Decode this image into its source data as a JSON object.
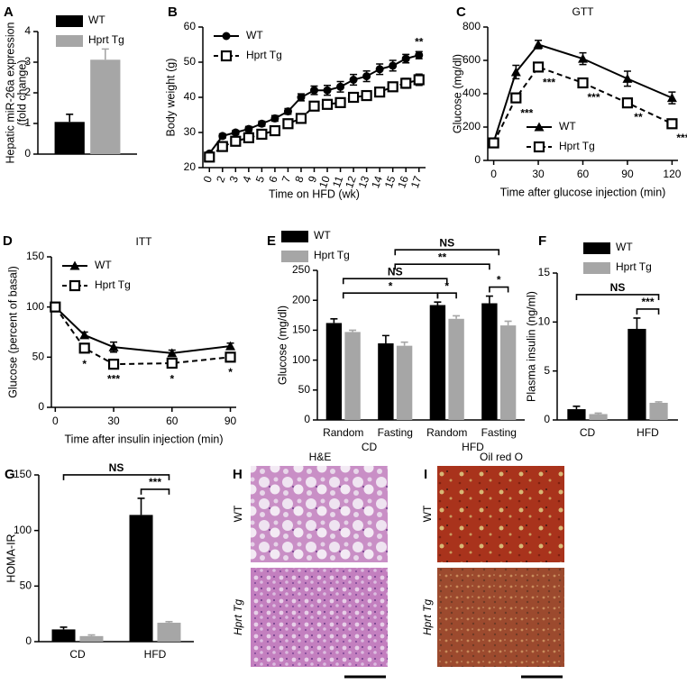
{
  "chart_data": [
    {
      "panel": "A",
      "type": "bar",
      "ylabel": [
        "Hepatic miR-26a expression",
        "(fold change)"
      ],
      "categories": [
        null
      ],
      "series": [
        {
          "name": "WT",
          "color": "#000000",
          "values": [
            1.05
          ],
          "errors": [
            0.25
          ]
        },
        {
          "name": "Hprt Tg",
          "color": "#a6a6a6",
          "values": [
            3.08
          ],
          "errors": [
            0.35
          ]
        }
      ],
      "ylim": [
        0,
        4
      ],
      "yticks": [
        0,
        1,
        2,
        3,
        4
      ],
      "legend": "upper left"
    },
    {
      "panel": "B",
      "type": "line",
      "ylabel": "Body weight (g)",
      "xlabel": "Time on HFD (wk)",
      "categories": [
        "0",
        "2",
        "3",
        "4",
        "5",
        "6",
        "7",
        "8",
        "9",
        "10",
        "11",
        "12",
        "13",
        "14",
        "15",
        "16",
        "17"
      ],
      "series": [
        {
          "name": "WT",
          "color": "#000000",
          "marker": "circle",
          "linestyle": "solid",
          "values": [
            24,
            29,
            30,
            31,
            32.5,
            34,
            36,
            40,
            42,
            42,
            43,
            45,
            46,
            48,
            49,
            51,
            52
          ],
          "errors": [
            0.5,
            0.6,
            0.6,
            0.7,
            0.7,
            0.8,
            0.8,
            1,
            1.2,
            1.4,
            1.5,
            1.5,
            1.5,
            1.5,
            1.5,
            1.2,
            1
          ]
        },
        {
          "name": "Hprt Tg",
          "color": "#000000",
          "marker": "square",
          "linestyle": "dashed",
          "values": [
            23,
            26,
            27.5,
            28.5,
            29.5,
            30.5,
            32.5,
            34,
            37.5,
            38,
            38.5,
            40,
            40.5,
            41.5,
            43,
            44,
            45
          ],
          "errors": [
            0.5,
            0.5,
            0.6,
            0.6,
            0.6,
            0.7,
            0.7,
            0.8,
            0.9,
            1,
            1,
            1,
            1,
            1.1,
            1.2,
            1.4,
            1.6
          ],
          "significance": [
            null,
            null,
            null,
            null,
            null,
            null,
            null,
            null,
            null,
            null,
            null,
            null,
            null,
            null,
            null,
            null,
            "**"
          ]
        }
      ],
      "ylim": [
        20,
        60
      ],
      "yticks": [
        20,
        30,
        40,
        50,
        60
      ],
      "legend": "upper left"
    },
    {
      "panel": "C",
      "type": "line",
      "title": "GTT",
      "ylabel": "Glucose (mg/dl)",
      "xlabel": "Time after glucose injection (min)",
      "x": [
        0,
        15,
        30,
        60,
        90,
        120
      ],
      "series": [
        {
          "name": "WT",
          "color": "#000000",
          "marker": "triangle",
          "linestyle": "solid",
          "values": [
            110,
            530,
            695,
            610,
            490,
            375
          ],
          "errors": [
            15,
            40,
            25,
            35,
            45,
            35
          ]
        },
        {
          "name": "Hprt Tg",
          "color": "#000000",
          "marker": "square",
          "linestyle": "dashed",
          "values": [
            105,
            375,
            560,
            465,
            345,
            220
          ],
          "errors": [
            10,
            20,
            20,
            15,
            15,
            15
          ],
          "significance": [
            null,
            "***",
            "***",
            "***",
            "**",
            "***"
          ]
        }
      ],
      "xlim": [
        -4,
        124
      ],
      "xticks": [
        0,
        30,
        60,
        90,
        120
      ],
      "ylim": [
        0,
        800
      ],
      "yticks": [
        0,
        200,
        400,
        600,
        800
      ],
      "legend": "lower right"
    },
    {
      "panel": "D",
      "type": "line",
      "title": "ITT",
      "ylabel": "Glucose (percent of basal)",
      "xlabel": "Time after insulin injection (min)",
      "x": [
        0,
        15,
        30,
        60,
        90
      ],
      "series": [
        {
          "name": "WT",
          "color": "#000000",
          "marker": "triangle",
          "linestyle": "solid",
          "values": [
            100,
            72,
            60,
            54,
            61
          ],
          "errors": [
            0,
            3,
            5,
            3,
            3
          ]
        },
        {
          "name": "Hprt Tg",
          "color": "#000000",
          "marker": "square",
          "linestyle": "dashed",
          "values": [
            100,
            59,
            43,
            44,
            50
          ],
          "errors": [
            0,
            4,
            3,
            4,
            3
          ],
          "significance": [
            null,
            "*",
            "***",
            "*",
            "*"
          ]
        }
      ],
      "xlim": [
        -2,
        93
      ],
      "xticks": [
        0,
        30,
        60,
        90
      ],
      "ylim": [
        0,
        150
      ],
      "yticks": [
        0,
        50,
        100,
        150
      ],
      "legend": "upper left"
    },
    {
      "panel": "E",
      "type": "bar",
      "ylabel": "Glucose (mg/dl)",
      "categories": [
        "Random",
        "Fasting",
        "Random",
        "Fasting"
      ],
      "groups": [
        {
          "name": "CD",
          "span": [
            0,
            1
          ]
        },
        {
          "name": "HFD",
          "span": [
            2,
            3
          ]
        }
      ],
      "series": [
        {
          "name": "WT",
          "color": "#000000",
          "values": [
            162,
            128,
            192,
            195
          ],
          "errors": [
            7,
            13,
            5,
            12
          ]
        },
        {
          "name": "Hprt Tg",
          "color": "#a6a6a6",
          "values": [
            147,
            124,
            169,
            158
          ],
          "errors": [
            3,
            6,
            5,
            7
          ]
        }
      ],
      "comparisons": [
        {
          "from": {
            "category": 2,
            "series": 0
          },
          "to": {
            "category": 2,
            "series": 1
          },
          "label": "*"
        },
        {
          "from": {
            "category": 0
          },
          "to": {
            "category": 2,
            "series": 0
          },
          "label": "*"
        },
        {
          "from": {
            "category": 0
          },
          "to": {
            "category": 2
          },
          "label": "NS"
        },
        {
          "from": {
            "category": 3,
            "series": 0
          },
          "to": {
            "category": 3,
            "series": 1
          },
          "label": "*"
        },
        {
          "from": {
            "category": 1
          },
          "to": {
            "category": 3,
            "series": 0
          },
          "label": "**"
        },
        {
          "from": {
            "category": 1
          },
          "to": {
            "category": 3
          },
          "label": "NS"
        }
      ],
      "ylim": [
        0,
        250
      ],
      "yticks": [
        0,
        50,
        100,
        150,
        200,
        250
      ],
      "legend": "top"
    },
    {
      "panel": "F",
      "type": "bar",
      "ylabel": "Plasma insulin (ng/ml)",
      "categories": [
        "CD",
        "HFD"
      ],
      "series": [
        {
          "name": "WT",
          "color": "#000000",
          "values": [
            1.1,
            9.3
          ],
          "errors": [
            0.3,
            1.1
          ]
        },
        {
          "name": "Hprt Tg",
          "color": "#a6a6a6",
          "values": [
            0.6,
            1.75
          ],
          "errors": [
            0.1,
            0.1
          ]
        }
      ],
      "comparisons": [
        {
          "from": {
            "category": 1,
            "series": 0
          },
          "to": {
            "category": 1,
            "series": 1
          },
          "label": "***"
        },
        {
          "from": {
            "category": 0,
            "series": 0
          },
          "to": {
            "category": 1,
            "series": 1
          },
          "label": "NS"
        }
      ],
      "ylim": [
        0,
        15
      ],
      "yticks": [
        0,
        5,
        10,
        15
      ],
      "legend": "upper right"
    },
    {
      "panel": "G",
      "type": "bar",
      "ylabel": "HOMA-IR",
      "categories": [
        "CD",
        "HFD"
      ],
      "series": [
        {
          "name": "WT",
          "color": "#000000",
          "values": [
            11,
            114
          ],
          "errors": [
            2,
            15
          ]
        },
        {
          "name": "Hprt Tg",
          "color": "#a6a6a6",
          "values": [
            5,
            17
          ],
          "errors": [
            1,
            1
          ]
        }
      ],
      "comparisons": [
        {
          "from": {
            "category": 1,
            "series": 0
          },
          "to": {
            "category": 1,
            "series": 1
          },
          "label": "***"
        },
        {
          "from": {
            "category": 0,
            "series": 0
          },
          "to": {
            "category": 1,
            "series": 1
          },
          "label": "NS"
        }
      ],
      "ylim": [
        0,
        150
      ],
      "yticks": [
        0,
        50,
        100,
        150
      ]
    }
  ],
  "micrographs": [
    {
      "panel": "H",
      "title": "H&E",
      "rows": [
        "WT",
        "Hprt Tg"
      ]
    },
    {
      "panel": "I",
      "title": "Oil red O",
      "rows": [
        "WT",
        "Hprt Tg"
      ]
    }
  ]
}
